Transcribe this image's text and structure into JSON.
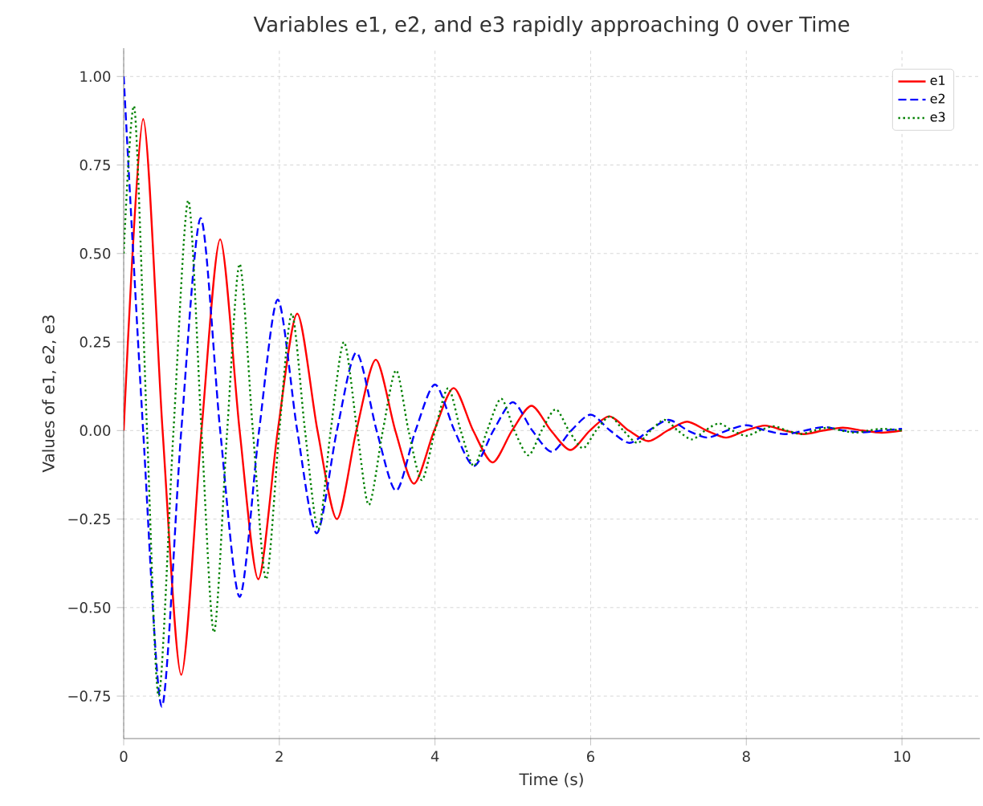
{
  "chart_data": {
    "type": "line",
    "title": "Variables e1, e2, and e3 rapidly approaching 0 over Time",
    "xlabel": "Time (s)",
    "ylabel": "Values of e1, e2, e3",
    "xlim": [
      0,
      11
    ],
    "ylim": [
      -0.87,
      1.08
    ],
    "xticks": [
      0,
      2,
      4,
      6,
      8,
      10
    ],
    "yticks": [
      {
        "value": -0.75,
        "label": "−0.75"
      },
      {
        "value": -0.5,
        "label": "−0.50"
      },
      {
        "value": -0.25,
        "label": "−0.25"
      },
      {
        "value": 0,
        "label": "0.00"
      },
      {
        "value": 0.25,
        "label": "0.25"
      },
      {
        "value": 0.5,
        "label": "0.50"
      },
      {
        "value": 0.75,
        "label": "0.75"
      },
      {
        "value": 1,
        "label": "1.00"
      }
    ],
    "grid": true,
    "legend": "top right",
    "marker": "none",
    "series": [
      {
        "name": "e1",
        "color": "#ff0000",
        "line_style": "solid",
        "x": [
          0,
          0.25,
          0.5,
          0.74,
          1.0,
          1.24,
          1.49,
          1.73,
          1.98,
          2.23,
          2.49,
          2.74,
          2.99,
          3.24,
          3.49,
          3.73,
          3.99,
          4.24,
          4.49,
          4.74,
          4.99,
          5.24,
          5.49,
          5.74,
          5.99,
          6.24,
          6.49,
          6.74,
          6.99,
          7.24,
          7.49,
          7.74,
          7.99,
          8.24,
          8.49,
          8.74,
          8.99,
          9.24,
          9.49,
          9.74,
          10
        ],
        "values": [
          0,
          0.88,
          0,
          -0.69,
          0,
          0.54,
          0,
          -0.42,
          0,
          0.33,
          0,
          -0.25,
          0,
          0.2,
          0,
          -0.15,
          0,
          0.12,
          0,
          -0.09,
          0,
          0.07,
          0,
          -0.055,
          0,
          0.04,
          0,
          -0.03,
          0,
          0.025,
          0,
          -0.02,
          0,
          0.014,
          0,
          -0.01,
          0,
          0.008,
          0,
          -0.006,
          0
        ]
      },
      {
        "name": "e2",
        "color": "#0000ff",
        "line_style": "dashed",
        "x": [
          0,
          0.25,
          0.49,
          0.74,
          0.99,
          1.24,
          1.49,
          1.74,
          1.98,
          2.23,
          2.48,
          2.74,
          2.99,
          3.25,
          3.5,
          3.75,
          4.0,
          4.25,
          4.5,
          4.75,
          5.0,
          5.25,
          5.5,
          5.75,
          6.0,
          6.25,
          6.5,
          6.75,
          7.0,
          7.25,
          7.5,
          7.75,
          8.0,
          8.25,
          8.5,
          8.75,
          9.0,
          9.25,
          9.5,
          9.75,
          10
        ],
        "values": [
          1.0,
          0,
          -0.78,
          0,
          0.6,
          0,
          -0.47,
          0,
          0.37,
          0,
          -0.29,
          0,
          0.22,
          0,
          -0.17,
          0,
          0.13,
          0,
          -0.1,
          0,
          0.08,
          0,
          -0.06,
          0,
          0.045,
          0,
          -0.035,
          0,
          0.03,
          0,
          -0.02,
          0,
          0.015,
          0,
          -0.01,
          0,
          0.01,
          0,
          -0.005,
          0,
          0.005
        ]
      },
      {
        "name": "e3",
        "color": "#008000",
        "line_style": "dotted",
        "x": [
          0,
          0.14,
          0.3,
          0.45,
          0.64,
          0.83,
          1.0,
          1.16,
          1.33,
          1.49,
          1.66,
          1.83,
          2.0,
          2.16,
          2.33,
          2.5,
          2.66,
          2.83,
          3.0,
          3.15,
          3.33,
          3.5,
          3.66,
          3.83,
          4.0,
          4.17,
          4.33,
          4.5,
          4.67,
          4.85,
          5.02,
          5.2,
          5.37,
          5.55,
          5.72,
          5.9,
          6.07,
          6.25,
          6.42,
          6.6,
          6.77,
          6.95,
          7.12,
          7.3,
          7.47,
          7.65,
          7.82,
          8.0,
          8.17,
          8.35,
          8.52,
          8.7,
          8.87,
          9.05,
          9.22,
          9.4,
          9.57,
          9.75,
          10
        ],
        "values": [
          0.5,
          0.91,
          0,
          -0.75,
          0,
          0.65,
          0,
          -0.57,
          0,
          0.47,
          0,
          -0.42,
          0,
          0.33,
          0,
          -0.28,
          0,
          0.25,
          0,
          -0.21,
          0,
          0.17,
          0,
          -0.14,
          0,
          0.12,
          0,
          -0.1,
          0,
          0.09,
          0,
          -0.07,
          0,
          0.06,
          0,
          -0.05,
          0,
          0.04,
          0,
          -0.035,
          0,
          0.03,
          0,
          -0.025,
          0,
          0.02,
          0,
          -0.015,
          0,
          0.012,
          0,
          -0.01,
          0,
          0.008,
          0,
          -0.006,
          0,
          0.005,
          0
        ]
      }
    ]
  }
}
